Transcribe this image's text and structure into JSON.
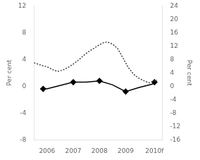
{
  "chart_data": {
    "type": "line",
    "xlim": [
      2005.5,
      2010.4
    ],
    "xticks": [
      2006,
      2007,
      2008,
      2009,
      {
        "value": 2010.1,
        "label": "2010f"
      }
    ],
    "ylim": [
      -8,
      12
    ],
    "yticks": [
      -8,
      -4,
      0,
      4,
      8,
      12
    ],
    "y2lim": [
      -16,
      24
    ],
    "y2ticks": [
      -16,
      -12,
      -8,
      -4,
      0,
      4,
      8,
      12,
      16,
      20,
      24
    ],
    "ylabel": "Per cent",
    "y2label": "Per cent",
    "grid": false,
    "series": [
      {
        "x": [
          2005.5,
          2005.65,
          2005.8,
          2006.0,
          2006.2,
          2006.4,
          2006.6,
          2006.8,
          2007.0,
          2007.2,
          2007.4,
          2007.6,
          2007.8,
          2008.0,
          2008.15,
          2008.3,
          2008.5,
          2008.7,
          2008.9,
          2009.1,
          2009.3,
          2009.5,
          2009.7,
          2009.9,
          2010.1,
          2010.2
        ],
        "values": [
          3.5,
          3.3,
          3.1,
          2.9,
          2.5,
          2.2,
          2.4,
          2.8,
          3.3,
          3.9,
          4.6,
          5.2,
          5.7,
          6.2,
          6.5,
          6.6,
          6.3,
          5.6,
          4.2,
          2.8,
          1.8,
          1.2,
          0.8,
          0.5,
          0.8,
          0.9
        ],
        "color": "#404040",
        "line_style": "dotted",
        "marker": "none"
      },
      {
        "x": [
          2005.75,
          2006.0,
          2006.5,
          2007.0,
          2007.5,
          2008.0,
          2008.5,
          2009.0,
          2009.5,
          2010.0,
          2010.2
        ],
        "values": [
          -0.4,
          -0.4,
          0.1,
          0.6,
          0.6,
          0.8,
          0.2,
          -0.8,
          -0.2,
          0.3,
          0.6
        ],
        "color": "#000000",
        "line_style": "solid",
        "marker": "none"
      },
      {
        "x": [
          2005.85,
          2007.0,
          2008.0,
          2009.0,
          2010.1
        ],
        "values": [
          -0.4,
          0.6,
          0.8,
          -0.8,
          0.6
        ],
        "color": "#000000",
        "line_style": "none",
        "marker": "diamond"
      }
    ]
  }
}
